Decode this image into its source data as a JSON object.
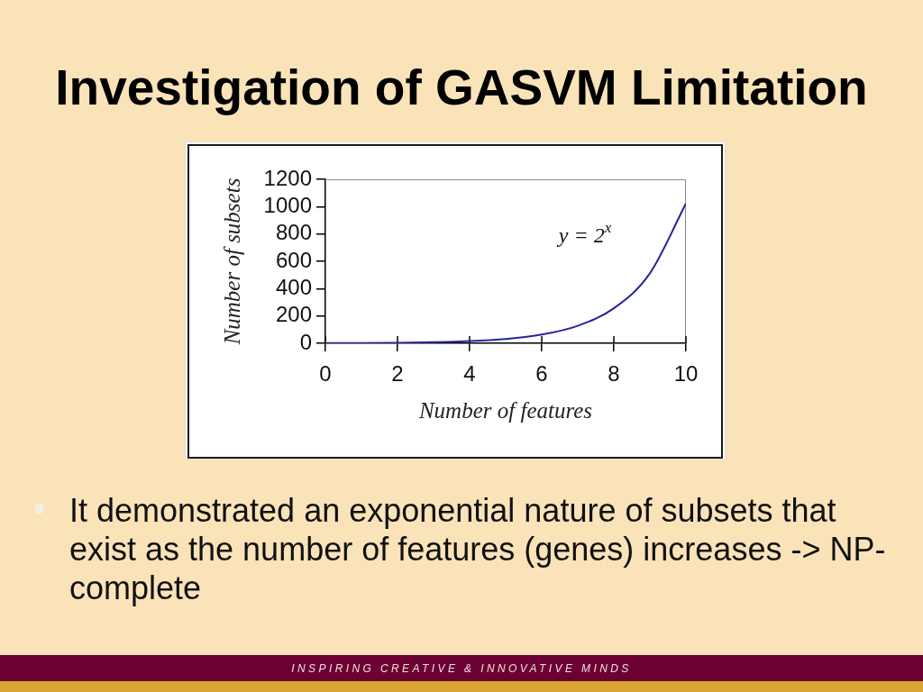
{
  "chart_data": {
    "type": "line",
    "title": "Investigation of GASVM Limitation",
    "xlabel": "Number of features",
    "ylabel": "Number of subsets",
    "x": [
      0,
      1,
      2,
      3,
      4,
      5,
      6,
      7,
      8,
      9,
      10
    ],
    "values": [
      1,
      2,
      4,
      8,
      16,
      32,
      64,
      128,
      256,
      512,
      1024
    ],
    "color": "#24249c",
    "xlim": [
      0,
      10
    ],
    "xticks": [
      0,
      2,
      4,
      6,
      8,
      10
    ],
    "ylim": [
      0,
      1200
    ],
    "yticks": [
      0,
      200,
      400,
      600,
      800,
      1000,
      1200
    ],
    "marker": "none",
    "line_style": "solid",
    "annotations": [
      "y = 2$^{x}$",
      "It demonstrated an exponential nature of subsets that exist as the number of features (genes) increases -> NP-complete",
      "INSPIRING CREATIVE & INNOVATIVE MINDS"
    ]
  }
}
